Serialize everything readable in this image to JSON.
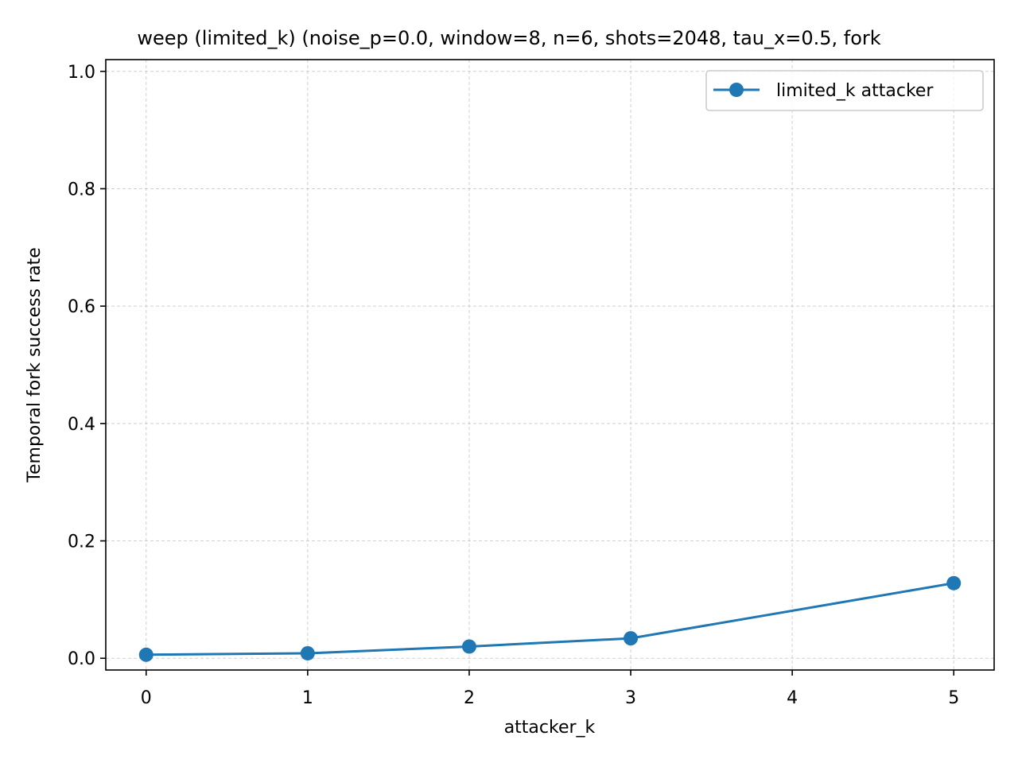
{
  "chart_data": {
    "type": "line",
    "title": "weep (limited_k) (noise_p=0.0, window=8, n=6, shots=2048, tau_x=0.5, fork",
    "xlabel": "attacker_k",
    "ylabel": "Temporal fork success rate",
    "xlim": [
      -0.25,
      5.25
    ],
    "ylim": [
      -0.02,
      1.02
    ],
    "xticks": [
      0,
      1,
      2,
      3,
      4,
      5
    ],
    "xtick_labels": [
      "0",
      "1",
      "2",
      "3",
      "4",
      "5"
    ],
    "yticks": [
      0.0,
      0.2,
      0.4,
      0.6,
      0.8,
      1.0
    ],
    "ytick_labels": [
      "0.0",
      "0.2",
      "0.4",
      "0.6",
      "0.8",
      "1.0"
    ],
    "grid": true,
    "legend_position": "top-right",
    "series": [
      {
        "name": "limited_k attacker",
        "color": "#1f77b4",
        "marker": "circle",
        "x": [
          0,
          1,
          2,
          3,
          5
        ],
        "y": [
          0.006,
          0.0085,
          0.02,
          0.034,
          0.128
        ]
      }
    ]
  }
}
